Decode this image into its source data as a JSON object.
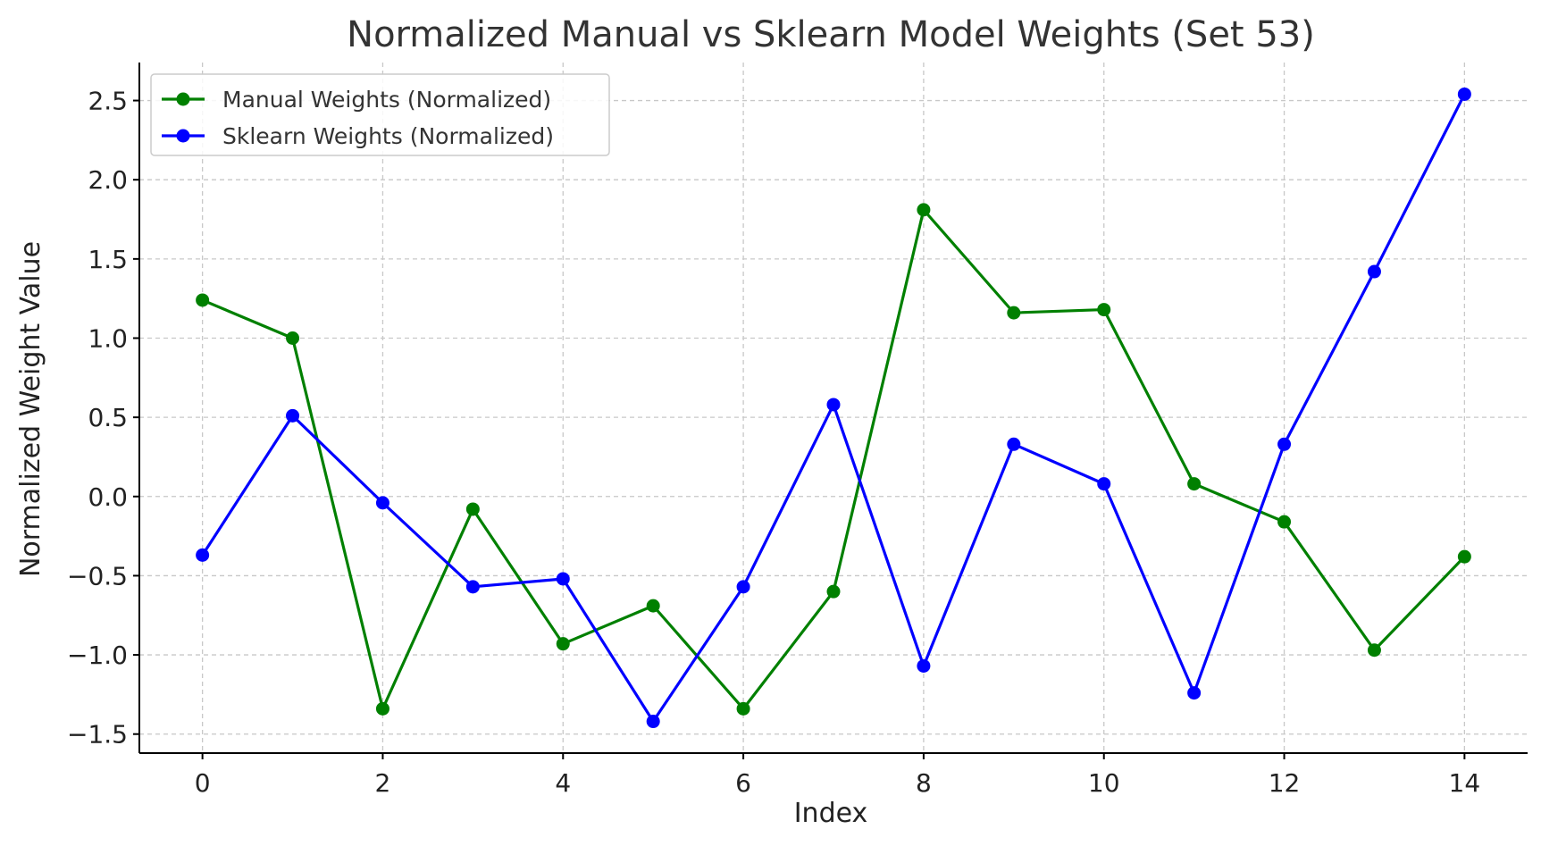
{
  "chart_data": {
    "type": "line",
    "title": "Normalized Manual vs Sklearn Model Weights (Set 53)",
    "xlabel": "Index",
    "ylabel": "Normalized Weight Value",
    "x": [
      0,
      1,
      2,
      3,
      4,
      5,
      6,
      7,
      8,
      9,
      10,
      11,
      12,
      13,
      14
    ],
    "xlim": [
      -0.7,
      14.7
    ],
    "ylim": [
      -1.62,
      2.74
    ],
    "xticks": [
      0,
      2,
      4,
      6,
      8,
      10,
      12,
      14
    ],
    "xtick_labels": [
      "0",
      "2",
      "4",
      "6",
      "8",
      "10",
      "12",
      "14"
    ],
    "yticks": [
      -1.5,
      -1.0,
      -0.5,
      0.0,
      0.5,
      1.0,
      1.5,
      2.0,
      2.5
    ],
    "ytick_labels": [
      "−1.5",
      "−1.0",
      "−0.5",
      "0.0",
      "0.5",
      "1.0",
      "1.5",
      "2.0",
      "2.5"
    ],
    "grid": true,
    "legend_position": "top-left",
    "series": [
      {
        "name": "Manual Weights (Normalized)",
        "color": "#008000",
        "marker": "circle",
        "values": [
          1.24,
          1.0,
          -1.34,
          -0.08,
          -0.93,
          -0.69,
          -1.34,
          -0.6,
          1.81,
          1.16,
          1.18,
          0.08,
          -0.16,
          -0.97,
          -0.38
        ]
      },
      {
        "name": "Sklearn Weights (Normalized)",
        "color": "#0000ff",
        "marker": "circle",
        "values": [
          -0.37,
          0.51,
          -0.04,
          -0.57,
          -0.52,
          -1.42,
          -0.57,
          0.58,
          -1.07,
          0.33,
          0.08,
          -1.24,
          0.33,
          1.42,
          2.54
        ]
      }
    ]
  }
}
